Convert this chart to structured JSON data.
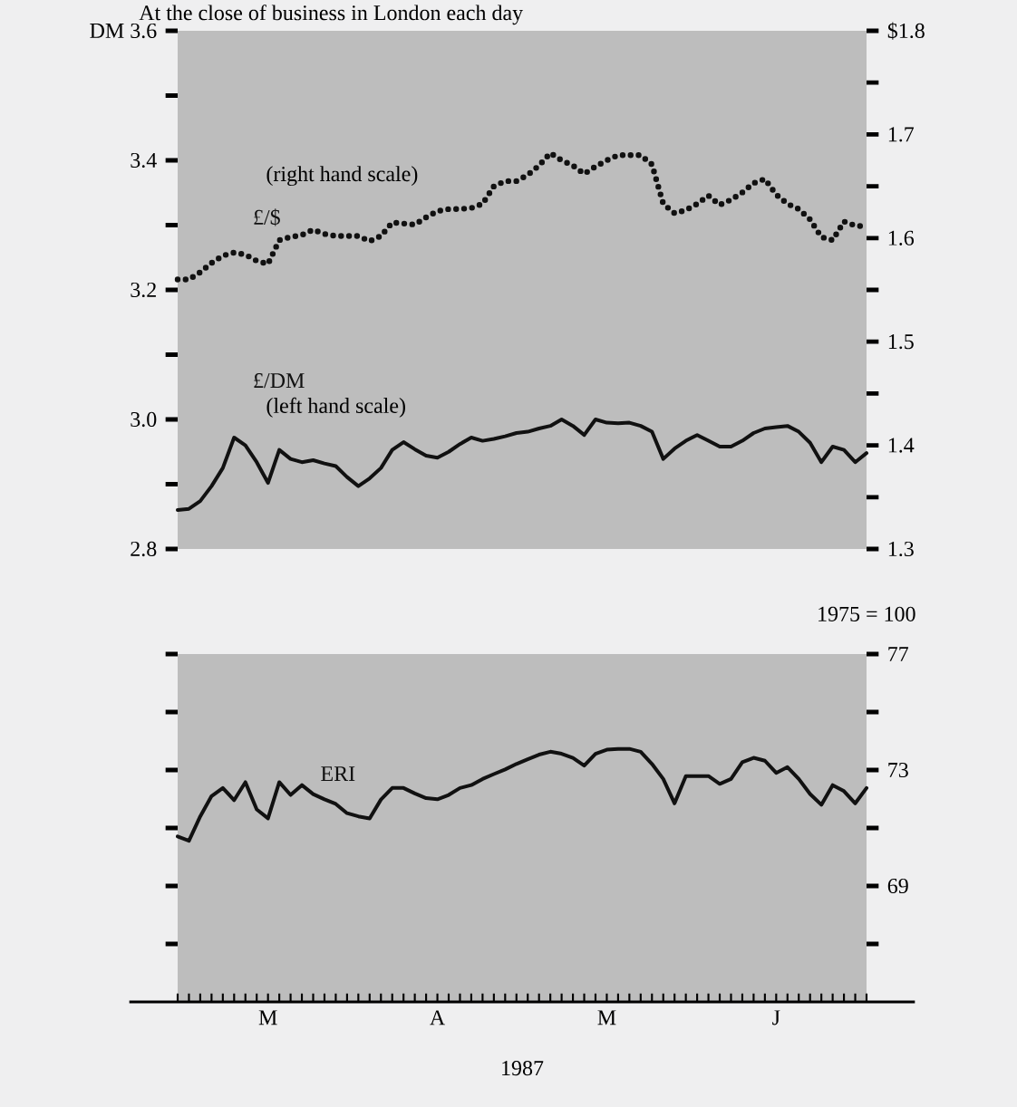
{
  "chart_data": [
    {
      "type": "line",
      "title": "At the close of business in London each day",
      "tick_labels": "y",
      "categories": [
        null,
        null,
        null,
        null,
        null,
        null,
        null,
        null,
        null,
        null,
        null,
        null,
        null,
        null,
        null,
        null,
        null,
        null,
        null,
        null,
        null,
        null,
        null,
        null,
        null,
        null,
        null,
        null,
        null,
        null,
        null,
        null,
        null,
        null,
        null,
        null,
        null,
        null,
        null,
        null,
        null,
        null,
        null,
        null,
        null,
        null,
        null,
        null,
        null,
        null,
        null,
        null,
        null,
        null,
        null,
        null,
        null,
        null,
        null,
        null,
        null,
        null
      ],
      "ylim": [
        2.8,
        3.6
      ],
      "yticks": [
        {
          "value": 3.6,
          "label": "DM 3.6"
        },
        {
          "value": 3.5,
          "label": null
        },
        3.4,
        {
          "value": 3.3,
          "label": null
        },
        3.2,
        {
          "value": 3.1,
          "label": null
        },
        {
          "value": 3.0,
          "label": "3.0"
        },
        {
          "value": 2.9,
          "label": null
        },
        2.8
      ],
      "y2lim": [
        1.3,
        1.8
      ],
      "y2ticks": [
        {
          "value": 1.8,
          "label": "$1.8"
        },
        {
          "value": 1.75,
          "label": null
        },
        1.7,
        {
          "value": 1.65,
          "label": null
        },
        1.6,
        {
          "value": 1.55,
          "label": null
        },
        1.5,
        {
          "value": 1.45,
          "label": null
        },
        1.4,
        {
          "value": 1.35,
          "label": null
        },
        1.3
      ],
      "annotations": [
        "(right hand scale)",
        "(left hand scale)"
      ],
      "series": [
        {
          "name": "£/$",
          "color": "#111111",
          "axis": "y2",
          "line_style": "dotted",
          "values": [
            1.56,
            1.56,
            1.567,
            1.576,
            1.583,
            1.586,
            1.584,
            1.578,
            1.575,
            1.598,
            1.601,
            1.603,
            1.608,
            1.604,
            1.602,
            1.602,
            1.602,
            1.597,
            1.602,
            1.615,
            1.614,
            1.613,
            1.62,
            1.626,
            1.628,
            1.628,
            1.629,
            1.633,
            1.65,
            1.655,
            1.655,
            1.661,
            1.67,
            1.682,
            1.675,
            1.67,
            1.662,
            1.669,
            1.675,
            1.68,
            1.68,
            1.68,
            1.671,
            1.633,
            1.624,
            1.627,
            1.633,
            1.641,
            1.632,
            1.637,
            1.644,
            1.653,
            1.657,
            1.642,
            1.633,
            1.628,
            1.618,
            1.601,
            1.598,
            1.616,
            1.612,
            1.611
          ]
        },
        {
          "name": "£/DM",
          "color": "#111111",
          "line_style": "solid",
          "values": [
            2.86,
            2.862,
            2.874,
            2.897,
            2.925,
            2.972,
            2.96,
            2.934,
            2.902,
            2.953,
            2.939,
            2.934,
            2.937,
            2.932,
            2.928,
            2.911,
            2.897,
            2.909,
            2.925,
            2.953,
            2.965,
            2.954,
            2.944,
            2.941,
            2.95,
            2.962,
            2.972,
            2.967,
            2.97,
            2.974,
            2.979,
            2.981,
            2.986,
            2.99,
            3.0,
            2.99,
            2.976,
            3.0,
            2.995,
            2.994,
            2.995,
            2.99,
            2.981,
            2.939,
            2.955,
            2.967,
            2.976,
            2.967,
            2.958,
            2.958,
            2.967,
            2.979,
            2.986,
            2.988,
            2.99,
            2.981,
            2.964,
            2.934,
            2.958,
            2.953,
            2.934,
            2.948
          ]
        }
      ]
    },
    {
      "type": "line",
      "xlabel": "1987",
      "y2label": "1975 = 100",
      "categories": [
        null,
        null,
        null,
        null,
        null,
        null,
        null,
        null,
        "M",
        null,
        null,
        null,
        null,
        null,
        null,
        null,
        null,
        null,
        null,
        null,
        null,
        null,
        null,
        "A",
        null,
        null,
        null,
        null,
        null,
        null,
        null,
        null,
        null,
        null,
        null,
        null,
        null,
        null,
        "M",
        null,
        null,
        null,
        null,
        null,
        null,
        null,
        null,
        null,
        null,
        null,
        null,
        null,
        null,
        "J",
        null,
        null,
        null,
        null,
        null,
        null,
        null,
        null
      ],
      "y2lim": [
        65,
        77
      ],
      "y2ticks": [
        77,
        {
          "value": 75,
          "label": null
        },
        73,
        {
          "value": 71,
          "label": null
        },
        69,
        {
          "value": 67,
          "label": null
        }
      ],
      "series": [
        {
          "name": "ERI",
          "color": "#111111",
          "axis": "y2",
          "line_style": "solid",
          "values": [
            70.71,
            70.56,
            71.4,
            72.1,
            72.38,
            71.96,
            72.58,
            71.64,
            71.33,
            72.58,
            72.14,
            72.48,
            72.17,
            71.99,
            71.83,
            71.51,
            71.4,
            71.33,
            71.98,
            72.38,
            72.38,
            72.19,
            72.03,
            71.99,
            72.14,
            72.38,
            72.48,
            72.69,
            72.86,
            73.02,
            73.21,
            73.37,
            73.53,
            73.63,
            73.56,
            73.42,
            73.15,
            73.56,
            73.7,
            73.73,
            73.73,
            73.63,
            73.21,
            72.69,
            71.85,
            72.79,
            72.79,
            72.79,
            72.52,
            72.69,
            73.27,
            73.42,
            73.32,
            72.9,
            73.1,
            72.69,
            72.17,
            71.8,
            72.48,
            72.27,
            71.85,
            72.38
          ]
        }
      ]
    }
  ]
}
